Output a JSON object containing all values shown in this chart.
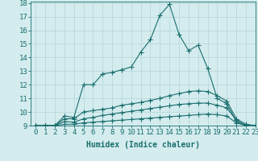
{
  "x": [
    0,
    1,
    2,
    3,
    4,
    5,
    6,
    7,
    8,
    9,
    10,
    11,
    12,
    13,
    14,
    15,
    16,
    17,
    18,
    19,
    20,
    21,
    22,
    23
  ],
  "series1": [
    9,
    9,
    9,
    9.7,
    9.6,
    12,
    12,
    12.8,
    12.9,
    13.1,
    13.3,
    14.4,
    15.3,
    17.1,
    17.9,
    15.7,
    14.5,
    14.9,
    13.2,
    11.0,
    10.6,
    9.3,
    9.0,
    9.0
  ],
  "series2": [
    9,
    9,
    9,
    9.5,
    9.5,
    10.0,
    10.1,
    10.2,
    10.3,
    10.5,
    10.6,
    10.7,
    10.85,
    11.0,
    11.2,
    11.35,
    11.5,
    11.55,
    11.5,
    11.2,
    10.8,
    9.5,
    9.1,
    9.0
  ],
  "series3": [
    9,
    9,
    9,
    9.3,
    9.25,
    9.5,
    9.6,
    9.75,
    9.85,
    9.95,
    10.05,
    10.15,
    10.25,
    10.35,
    10.45,
    10.55,
    10.6,
    10.65,
    10.65,
    10.5,
    10.3,
    9.4,
    9.0,
    9.0
  ],
  "series4": [
    9,
    9,
    9,
    9.1,
    9.1,
    9.2,
    9.25,
    9.3,
    9.35,
    9.4,
    9.45,
    9.5,
    9.55,
    9.6,
    9.65,
    9.7,
    9.75,
    9.8,
    9.85,
    9.8,
    9.7,
    9.2,
    9.0,
    9.0
  ],
  "line_color": "#1a6e6e",
  "bg_color": "#d4ecee",
  "grid_color": "#b8d8dc",
  "xlabel": "Humidex (Indice chaleur)",
  "ylim": [
    9,
    18
  ],
  "xlim": [
    -0.5,
    23
  ],
  "xlabel_fontsize": 7,
  "tick_fontsize": 6.5,
  "marker": "+",
  "markersize": 4
}
